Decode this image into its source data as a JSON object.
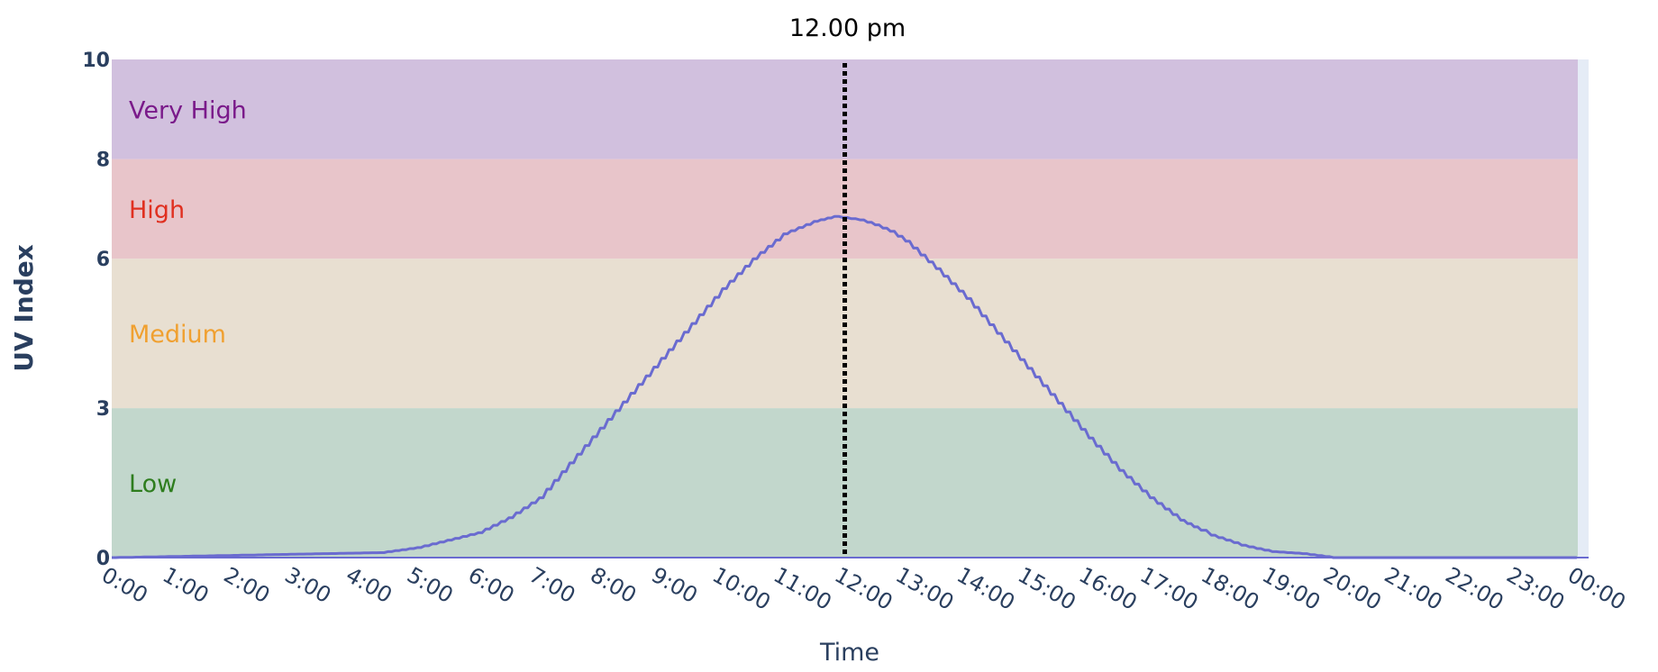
{
  "chart_data": {
    "type": "line",
    "title": "",
    "xlabel": "Time",
    "ylabel": "UV Index",
    "xlim": [
      "0:00",
      "24:00"
    ],
    "ylim": [
      0,
      10
    ],
    "grid": false,
    "legend": "none",
    "x_ticks": [
      "0:00",
      "1:00",
      "2:00",
      "3:00",
      "4:00",
      "5:00",
      "6:00",
      "7:00",
      "8:00",
      "9:00",
      "10:00",
      "11:00",
      "12:00",
      "13:00",
      "14:00",
      "15:00",
      "16:00",
      "17:00",
      "18:00",
      "19:00",
      "20:00",
      "21:00",
      "22:00",
      "23:00",
      "00:00"
    ],
    "y_ticks": [
      0,
      3,
      6,
      8,
      10
    ],
    "bands": [
      {
        "label": "Low",
        "from": 0,
        "to": 3,
        "fill": "#c2d7cc",
        "text_color": "#2e7d1e"
      },
      {
        "label": "Medium",
        "from": 3,
        "to": 6,
        "fill": "#e8dfd1",
        "text_color": "#f0a030"
      },
      {
        "label": "High",
        "from": 6,
        "to": 8,
        "fill": "#e8c5ca",
        "text_color": "#e03020"
      },
      {
        "label": "Very High",
        "from": 8,
        "to": 10,
        "fill": "#d1c0de",
        "text_color": "#7a1a8a"
      }
    ],
    "marker": {
      "x": "12:00",
      "label": "12.00 pm",
      "color": "#000000"
    },
    "series": [
      {
        "color": "#6a6bd0",
        "x": [
          "0:00",
          "4:24",
          "5:00",
          "5:30",
          "6:00",
          "6:15",
          "6:30",
          "7:00",
          "7:30",
          "8:00",
          "8:30",
          "9:00",
          "9:30",
          "10:00",
          "10:30",
          "11:00",
          "11:30",
          "11:50",
          "12:15",
          "12:30",
          "12:45",
          "13:00",
          "13:30",
          "14:00",
          "14:30",
          "15:00",
          "15:30",
          "16:00",
          "16:30",
          "17:00",
          "17:30",
          "17:50",
          "18:00",
          "18:15",
          "18:30",
          "18:45",
          "19:00",
          "19:30",
          "20:00",
          "23:59"
        ],
        "y": [
          0,
          0.1,
          0.2,
          0.35,
          0.5,
          0.65,
          0.8,
          1.2,
          1.9,
          2.6,
          3.3,
          4.0,
          4.7,
          5.4,
          6.0,
          6.5,
          6.75,
          6.85,
          6.78,
          6.68,
          6.55,
          6.35,
          5.8,
          5.2,
          4.5,
          3.8,
          3.1,
          2.4,
          1.75,
          1.2,
          0.75,
          0.55,
          0.45,
          0.35,
          0.25,
          0.18,
          0.12,
          0.08,
          0,
          0
        ]
      }
    ]
  }
}
